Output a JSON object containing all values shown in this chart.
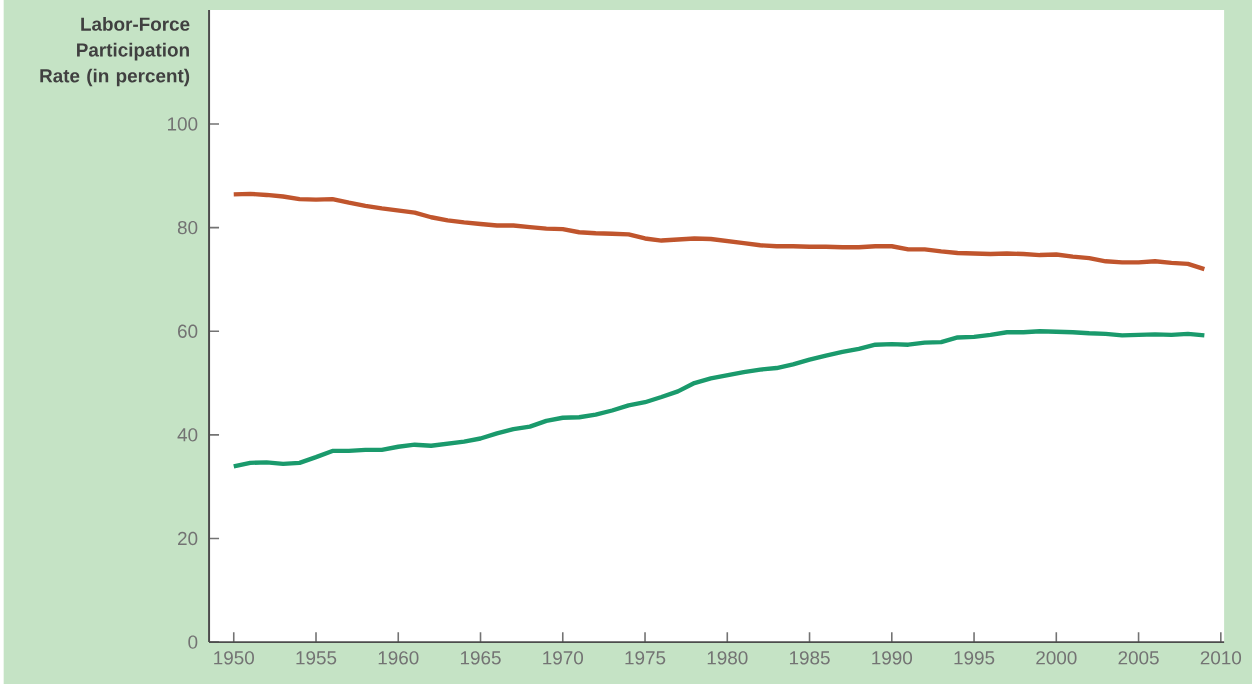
{
  "chart_data": {
    "type": "line",
    "ylabel": "Labor-Force Participation Rate (in percent)",
    "x": [
      1950,
      1951,
      1952,
      1953,
      1954,
      1955,
      1956,
      1957,
      1958,
      1959,
      1960,
      1961,
      1962,
      1963,
      1964,
      1965,
      1966,
      1967,
      1968,
      1969,
      1970,
      1971,
      1972,
      1973,
      1974,
      1975,
      1976,
      1977,
      1978,
      1979,
      1980,
      1981,
      1982,
      1983,
      1984,
      1985,
      1986,
      1987,
      1988,
      1989,
      1990,
      1991,
      1992,
      1993,
      1994,
      1995,
      1996,
      1997,
      1998,
      1999,
      2000,
      2001,
      2002,
      2003,
      2004,
      2005,
      2006,
      2007,
      2008,
      2009
    ],
    "series": [
      {
        "color": "#c0552d",
        "values": [
          86.4,
          86.5,
          86.3,
          86.0,
          85.5,
          85.4,
          85.5,
          84.8,
          84.2,
          83.7,
          83.3,
          82.9,
          82.0,
          81.4,
          81.0,
          80.7,
          80.4,
          80.4,
          80.1,
          79.8,
          79.7,
          79.1,
          78.9,
          78.8,
          78.7,
          77.9,
          77.5,
          77.7,
          77.9,
          77.8,
          77.4,
          77.0,
          76.6,
          76.4,
          76.4,
          76.3,
          76.3,
          76.2,
          76.2,
          76.4,
          76.4,
          75.8,
          75.8,
          75.4,
          75.1,
          75.0,
          74.9,
          75.0,
          74.9,
          74.7,
          74.8,
          74.4,
          74.1,
          73.5,
          73.3,
          73.3,
          73.5,
          73.2,
          73.0,
          72.0
        ]
      },
      {
        "color": "#1a9a6c",
        "values": [
          33.9,
          34.6,
          34.7,
          34.4,
          34.6,
          35.7,
          36.9,
          36.9,
          37.1,
          37.1,
          37.7,
          38.1,
          37.9,
          38.3,
          38.7,
          39.3,
          40.3,
          41.1,
          41.6,
          42.7,
          43.3,
          43.4,
          43.9,
          44.7,
          45.7,
          46.3,
          47.3,
          48.4,
          50.0,
          50.9,
          51.5,
          52.1,
          52.6,
          52.9,
          53.6,
          54.5,
          55.3,
          56.0,
          56.6,
          57.4,
          57.5,
          57.4,
          57.8,
          57.9,
          58.8,
          58.9,
          59.3,
          59.8,
          59.8,
          60.0,
          59.9,
          59.8,
          59.6,
          59.5,
          59.2,
          59.3,
          59.4,
          59.3,
          59.5,
          59.2
        ]
      }
    ],
    "xlim": [
      1948.5,
      2010.2
    ],
    "ylim": [
      0,
      122
    ],
    "xticks": [
      1950,
      1955,
      1960,
      1965,
      1970,
      1975,
      1980,
      1985,
      1990,
      1995,
      2000,
      2005,
      2010
    ],
    "yticks": [
      0,
      20,
      40,
      60,
      80,
      100
    ],
    "grid": false,
    "marker": "none",
    "line_style": "solid"
  }
}
